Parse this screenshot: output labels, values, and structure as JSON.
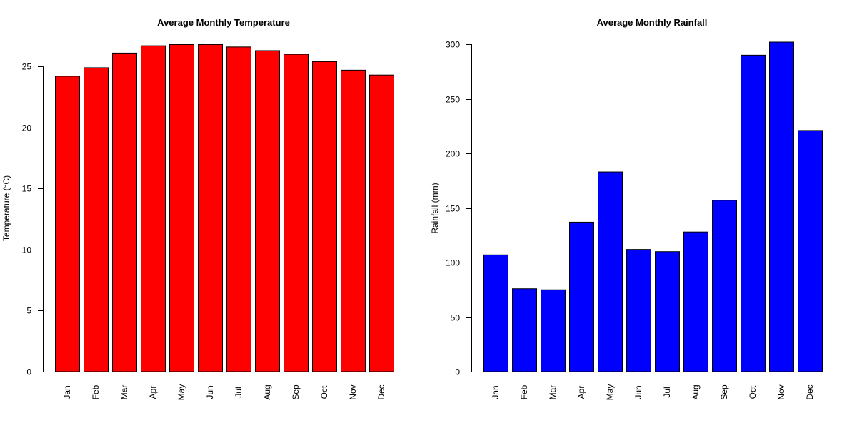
{
  "chart_data": [
    {
      "type": "bar",
      "title": "Average Monthly Temperature",
      "xlabel": "",
      "ylabel": "Temperature (°C)",
      "ylim": [
        0,
        27
      ],
      "yticks": [
        0,
        5,
        10,
        15,
        20,
        25
      ],
      "categories": [
        "Jan",
        "Feb",
        "Mar",
        "Apr",
        "May",
        "Jun",
        "Jul",
        "Aug",
        "Sep",
        "Oct",
        "Nov",
        "Dec"
      ],
      "values": [
        24.2,
        24.9,
        26.1,
        26.7,
        26.8,
        26.8,
        26.6,
        26.3,
        26.0,
        25.4,
        24.7,
        24.3
      ],
      "color": "#ff0000",
      "grid": false,
      "x_tick_label_orientation": "vertical"
    },
    {
      "type": "bar",
      "title": "Average Monthly Rainfall",
      "xlabel": "",
      "ylabel": "Rainfall (mm)",
      "ylim": [
        0,
        302
      ],
      "yticks": [
        0,
        50,
        100,
        150,
        200,
        250,
        300
      ],
      "categories": [
        "Jan",
        "Feb",
        "Mar",
        "Apr",
        "May",
        "Jun",
        "Jul",
        "Aug",
        "Sep",
        "Oct",
        "Nov",
        "Dec"
      ],
      "values": [
        107,
        76,
        75,
        137,
        183,
        112,
        110,
        128,
        157,
        290,
        302,
        221
      ],
      "color": "#0000ff",
      "grid": false,
      "x_tick_label_orientation": "vertical"
    }
  ]
}
